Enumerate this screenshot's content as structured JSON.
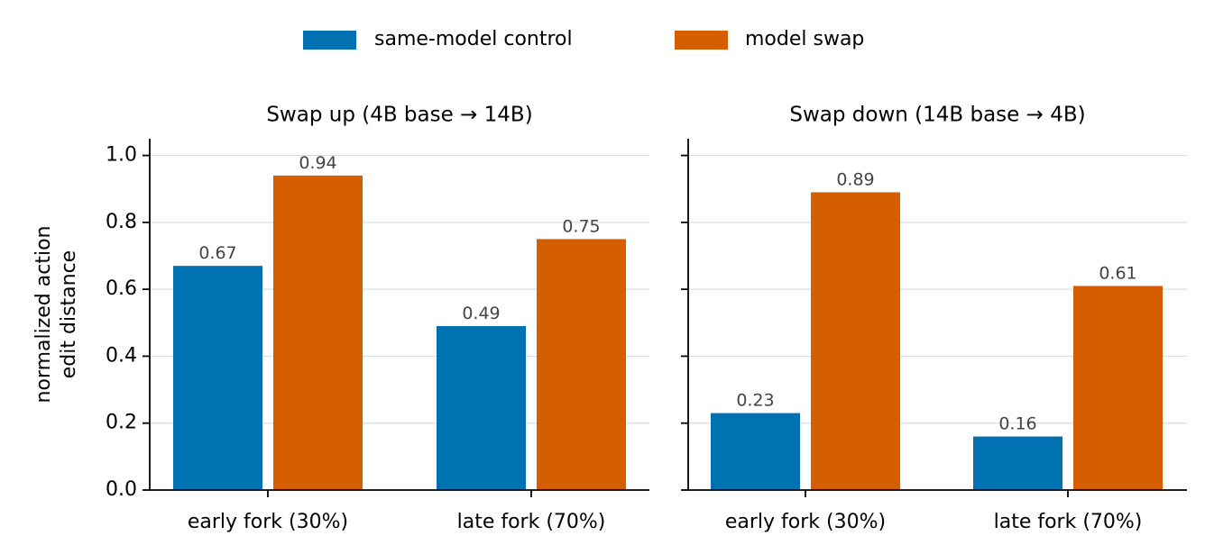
{
  "chart_data": {
    "type": "bar",
    "legend_position": "top-center",
    "grid": "horizontal",
    "ylabel": "normalized action\nedit distance",
    "ylim": [
      0,
      1.05
    ],
    "yticks": [
      "0.0",
      "0.2",
      "0.4",
      "0.6",
      "0.8",
      "1.0"
    ],
    "colors": {
      "same-model control": "#0072b2",
      "model swap": "#d55e00"
    },
    "series_names": [
      "same-model control",
      "model swap"
    ],
    "panels": [
      {
        "title": "Swap up (4B base → 14B)",
        "categories": [
          "early fork (30%)",
          "late fork (70%)"
        ],
        "series": [
          {
            "name": "same-model control",
            "values": [
              0.67,
              0.49
            ],
            "labels": [
              "0.67",
              "0.49"
            ]
          },
          {
            "name": "model swap",
            "values": [
              0.94,
              0.75
            ],
            "labels": [
              "0.94",
              "0.75"
            ]
          }
        ]
      },
      {
        "title": "Swap down (14B base → 4B)",
        "categories": [
          "early fork (30%)",
          "late fork (70%)"
        ],
        "series": [
          {
            "name": "same-model control",
            "values": [
              0.23,
              0.16
            ],
            "labels": [
              "0.23",
              "0.16"
            ]
          },
          {
            "name": "model swap",
            "values": [
              0.89,
              0.61
            ],
            "labels": [
              "0.89",
              "0.61"
            ]
          }
        ]
      }
    ]
  }
}
